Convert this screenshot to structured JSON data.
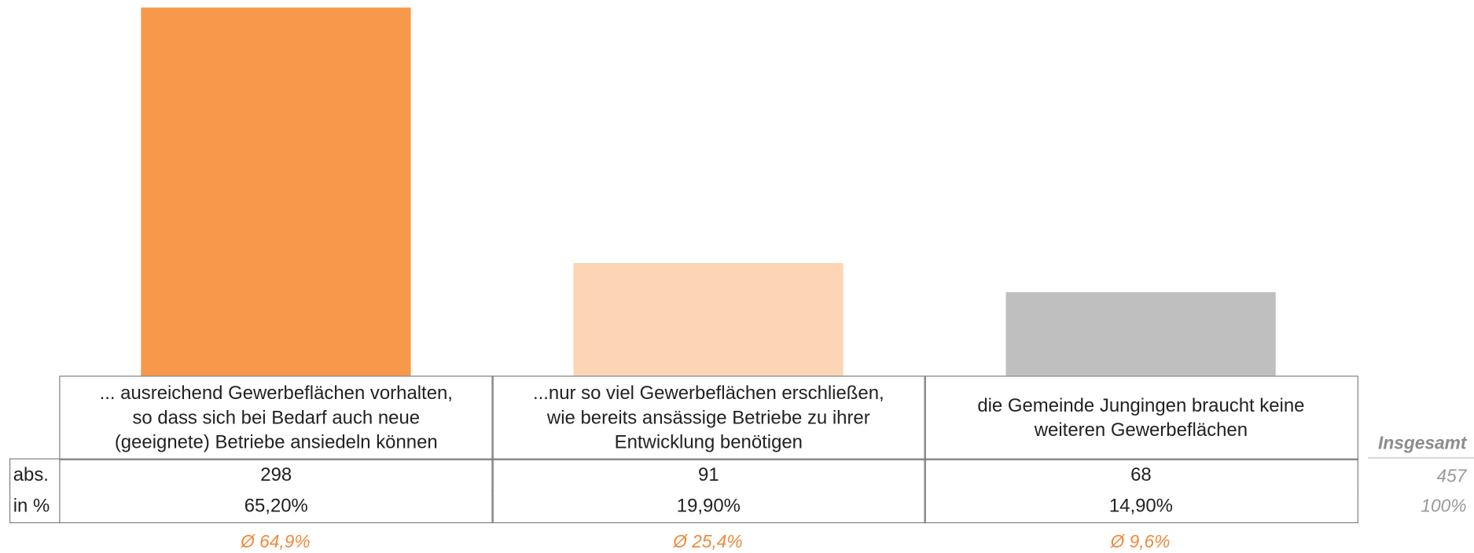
{
  "chart_data": {
    "type": "bar",
    "categories": [
      "... ausreichend Gewerbeflächen vorhalten,\nso dass sich bei Bedarf auch neue\n(geeignete) Betriebe ansiedeln können",
      "...nur so viel Gewerbeflächen erschließen,\nwie bereits ansässige Betriebe zu ihrer\nEntwicklung benötigen",
      "die Gemeinde Jungingen braucht keine\nweiteren Gewerbeflächen"
    ],
    "values": [
      298,
      91,
      68
    ],
    "colors": [
      "#f7984a",
      "#fcd5b5",
      "#bfbfbf"
    ],
    "row_labels": [
      "abs.",
      "in %"
    ],
    "percent_labels": [
      "65,20%",
      "19,90%",
      "14,90%"
    ],
    "averages": [
      "Ø 64,9%",
      "Ø 25,4%",
      "Ø 9,6%"
    ],
    "total_label": "Insgesamt",
    "total_abs": 457,
    "total_percent": "100%"
  }
}
